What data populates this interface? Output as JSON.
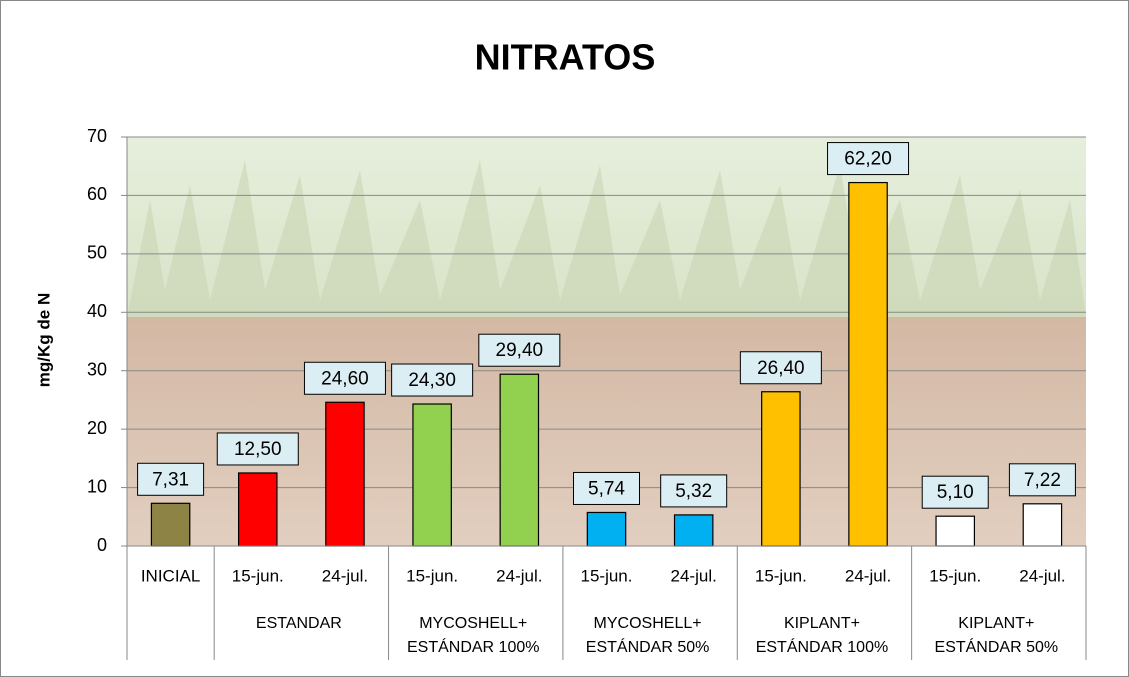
{
  "chart_data": {
    "type": "bar",
    "title": "NITRATOS",
    "y_label": "mg/Kg de N",
    "categories": [
      "INICIAL",
      "15-jun.",
      "24-jul.",
      "15-jun.",
      "24-jul.",
      "15-jun.",
      "24-jul.",
      "15-jun.",
      "24-jul.",
      "15-jun.",
      "24-jul."
    ],
    "category_groups": [
      null,
      "ESTANDAR",
      "ESTANDAR",
      "MYCOSHELL+ ESTÁNDAR 100%",
      "MYCOSHELL+ ESTÁNDAR 100%",
      "MYCOSHELL+ ESTÁNDAR 50%",
      "MYCOSHELL+ ESTÁNDAR 50%",
      "KIPLANT+ ESTÁNDAR 100%",
      "KIPLANT+ ESTÁNDAR 100%",
      "KIPLANT+ ESTÁNDAR 50%",
      "KIPLANT+ ESTÁNDAR 50%"
    ],
    "values": [
      7.31,
      12.5,
      24.6,
      24.3,
      29.4,
      5.74,
      5.32,
      26.4,
      62.2,
      5.1,
      7.22
    ],
    "value_labels": [
      "7,31",
      "12,50",
      "24,60",
      "24,30",
      "29,40",
      "5,74",
      "5,32",
      "26,40",
      "62,20",
      "5,10",
      "7,22"
    ],
    "colors": [
      "#8c8345",
      "#ff0000",
      "#ff0000",
      "#92d050",
      "#92d050",
      "#00b0f0",
      "#00b0f0",
      "#ffc000",
      "#ffc000",
      "#ffffff",
      "#ffffff"
    ],
    "ylim": [
      0,
      70
    ],
    "yticks": [
      0,
      10,
      20,
      30,
      40,
      50,
      60,
      70
    ],
    "grid": true
  }
}
